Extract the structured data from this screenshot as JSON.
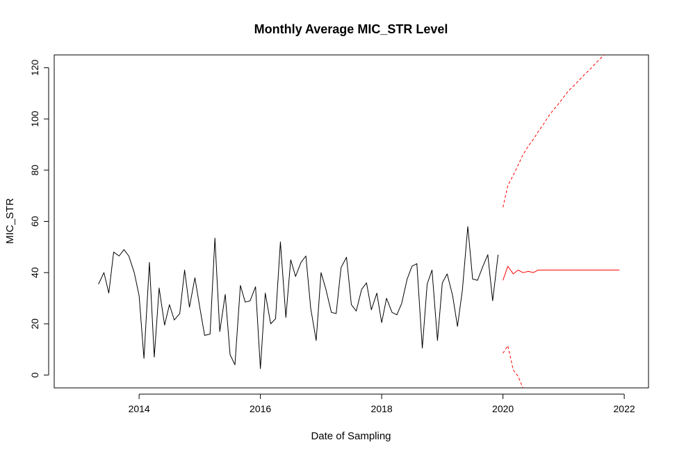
{
  "chart_data": {
    "type": "line",
    "title": "Monthly Average MIC_STR Level",
    "xlabel": "Date of Sampling",
    "ylabel": "MIC_STR",
    "xlim": [
      2012.6,
      2022.4
    ],
    "ylim": [
      -5,
      125
    ],
    "x_ticks": [
      2014,
      2016,
      2018,
      2020,
      2022
    ],
    "x_tick_labels": [
      "2014",
      "2016",
      "2018",
      "2020",
      "2022"
    ],
    "y_ticks": [
      0,
      20,
      40,
      60,
      80,
      100,
      120
    ],
    "y_tick_labels": [
      "0",
      "20",
      "40",
      "60",
      "80",
      "100",
      "120"
    ],
    "grid": false,
    "legend": "none",
    "series": [
      {
        "color": "#000000",
        "style": "solid",
        "x": [
          2013.33,
          2013.42,
          2013.5,
          2013.58,
          2013.67,
          2013.75,
          2013.83,
          2013.92,
          2014.0,
          2014.08,
          2014.17,
          2014.25,
          2014.33,
          2014.42,
          2014.5,
          2014.58,
          2014.67,
          2014.75,
          2014.83,
          2014.92,
          2015.0,
          2015.08,
          2015.17,
          2015.25,
          2015.33,
          2015.42,
          2015.5,
          2015.58,
          2015.67,
          2015.75,
          2015.83,
          2015.92,
          2016.0,
          2016.08,
          2016.17,
          2016.25,
          2016.33,
          2016.42,
          2016.5,
          2016.58,
          2016.67,
          2016.75,
          2016.83,
          2016.92,
          2017.0,
          2017.08,
          2017.17,
          2017.25,
          2017.33,
          2017.42,
          2017.5,
          2017.58,
          2017.67,
          2017.75,
          2017.83,
          2017.92,
          2018.0,
          2018.08,
          2018.17,
          2018.25,
          2018.33,
          2018.42,
          2018.5,
          2018.58,
          2018.67,
          2018.75,
          2018.83,
          2018.92,
          2019.0,
          2019.08,
          2019.17,
          2019.25,
          2019.33,
          2019.42,
          2019.5,
          2019.58,
          2019.67,
          2019.75,
          2019.83,
          2019.92
        ],
        "y": [
          35.5,
          40,
          32,
          48,
          46.5,
          49,
          46.5,
          40,
          31,
          6.5,
          44,
          7,
          34,
          19.5,
          27.5,
          21.5,
          24,
          41,
          26.5,
          38,
          26.5,
          15.5,
          16,
          53.5,
          17,
          31.5,
          8,
          4,
          35,
          28.5,
          29,
          34.5,
          2.5,
          32,
          20,
          22,
          52,
          22.5,
          45,
          38.5,
          44,
          46.5,
          26,
          13.5,
          40,
          33.5,
          24.5,
          24,
          42,
          46,
          27.5,
          25,
          33.5,
          36,
          25.5,
          32,
          20.5,
          30,
          24.5,
          23.5,
          28,
          37.5,
          42.5,
          43.5,
          10.5,
          35.5,
          41,
          13.5,
          36,
          39.5,
          31,
          19,
          33,
          58,
          37.5,
          37,
          42.5,
          47,
          29,
          47
        ]
      },
      {
        "color": "#ff0000",
        "style": "solid",
        "x": [
          2020.0,
          2020.08,
          2020.17,
          2020.25,
          2020.33,
          2020.42,
          2020.5,
          2020.58,
          2020.67,
          2020.75,
          2020.83,
          2020.92,
          2021.0,
          2021.08,
          2021.17,
          2021.25,
          2021.33,
          2021.42,
          2021.5,
          2021.58,
          2021.67,
          2021.75,
          2021.83,
          2021.92
        ],
        "y": [
          37,
          42.5,
          39.5,
          41,
          40,
          40.5,
          40,
          41,
          41,
          41,
          41,
          41,
          41,
          41,
          41,
          41,
          41,
          41,
          41,
          41,
          41,
          41,
          41,
          41
        ]
      },
      {
        "color": "#ff0000",
        "style": "dashed",
        "x": [
          2020.0,
          2020.08,
          2020.17,
          2020.25,
          2020.33,
          2020.42,
          2020.5,
          2020.58,
          2020.67,
          2020.75,
          2020.83,
          2020.92,
          2021.0,
          2021.08,
          2021.17,
          2021.25,
          2021.33,
          2021.42,
          2021.5,
          2021.58,
          2021.67
        ],
        "y": [
          65.5,
          74,
          78,
          82,
          86,
          89.5,
          92,
          95,
          98,
          101,
          103.5,
          106,
          108.5,
          111,
          113,
          115,
          117,
          119,
          121,
          123,
          125
        ]
      },
      {
        "color": "#ff0000",
        "style": "dashed",
        "x": [
          2020.0,
          2020.08,
          2020.17,
          2020.25,
          2020.33
        ],
        "y": [
          8.5,
          11.5,
          2,
          -0.5,
          -5
        ]
      }
    ]
  }
}
